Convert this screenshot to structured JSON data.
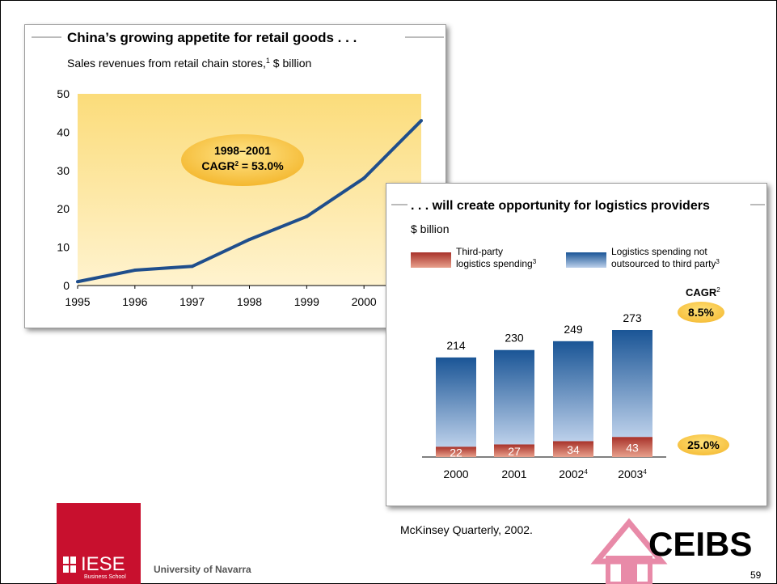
{
  "line_chart": {
    "title": "China’s growing appetite for retail goods . . .",
    "subtitle": "Sales revenues from retail chain stores,",
    "subtitle_sup": "1",
    "subtitle_unit": " $ billion",
    "callout_line1": "1998–2001",
    "callout_line2a": "CAGR",
    "callout_sup": "2",
    "callout_line2b": " = 53.0%"
  },
  "bar_chart": {
    "title": ". . . will create opportunity for logistics providers",
    "unit": "$ billion",
    "legend_third_line1": "Third-party",
    "legend_third_line2": "logistics spending",
    "legend_third_sup": "3",
    "legend_not_line1": "Logistics spending not",
    "legend_not_line2": "outsourced to third party",
    "legend_not_sup": "3",
    "cagr_label": "CAGR",
    "cagr_sup": "2",
    "cagr_total": "8.5%",
    "cagr_third": "25.0%"
  },
  "chart_data": [
    {
      "type": "line",
      "x": [
        1995,
        1996,
        1997,
        1998,
        1999,
        2000,
        2001
      ],
      "xticks": [
        "1995",
        "1996",
        "1997",
        "1998",
        "1999",
        "2000"
      ],
      "series": [
        {
          "values": [
            1,
            4,
            5,
            12,
            18,
            28,
            43
          ]
        }
      ],
      "ylim": [
        0,
        50
      ],
      "yticks": [
        "0",
        "10",
        "20",
        "30",
        "40",
        "50"
      ],
      "line_color": "#1f4e8c",
      "plot_fill": "#fce7a6"
    },
    {
      "type": "bar",
      "categories": [
        "2000",
        "2001",
        "2002",
        "2003"
      ],
      "category_sups": [
        "",
        "",
        "4",
        "4"
      ],
      "series": [
        {
          "name": "Third-party logistics spending",
          "values": [
            22,
            27,
            34,
            43
          ],
          "color": "#b94a3f"
        },
        {
          "name": "Logistics spending not outsourced to third party",
          "values": [
            192,
            203,
            215,
            230
          ],
          "color": "#1f5a9e"
        }
      ],
      "totals": [
        214,
        230,
        249,
        273
      ],
      "third_labels": [
        "22",
        "27",
        "34",
        "43"
      ],
      "ylim": [
        0,
        273
      ]
    }
  ],
  "footer": {
    "source": "McKinsey Quarterly, 2002.",
    "iese": "IESE",
    "iese_sub": "Business School",
    "university": "University of  Navarra",
    "ceibs": "CEIBS",
    "page": "59"
  },
  "colors": {
    "accent_yellow": "#f8c84a",
    "iese_red": "#c8102e",
    "ceibs_pink": "#e88aa8"
  }
}
